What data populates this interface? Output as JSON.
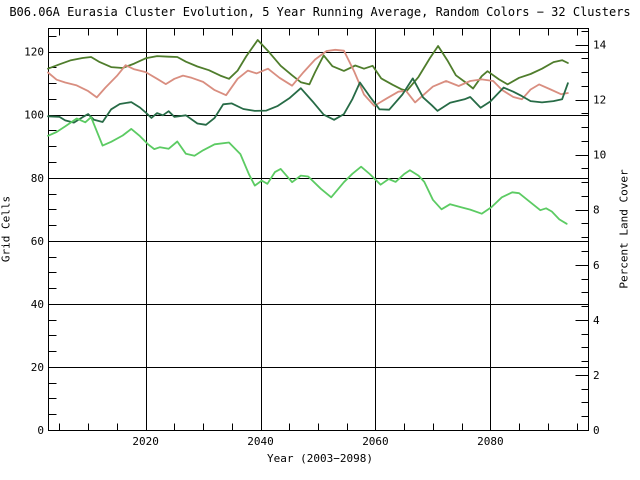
{
  "page": {
    "background": "#ffffff",
    "text_color": "#000000"
  },
  "chart_data": {
    "type": "line",
    "title": "B06.06A Eurasia Cluster Evolution, 5 Year Running Average, Random Colors − 32 Clusters",
    "xlabel": "Year (2003−2098)",
    "ylabel_left": "Grid Cells",
    "ylabel_right": "Percent Land Cover",
    "x_range": [
      2003,
      2097
    ],
    "x_major_ticks": [
      2020,
      2040,
      2060,
      2080
    ],
    "x_minor_step": 5,
    "y_left_range": [
      0,
      127.5
    ],
    "y_left_major_ticks": [
      0,
      20,
      40,
      60,
      80,
      100,
      120
    ],
    "y_left_minor_step": 5,
    "y_right_range": [
      0,
      14.6
    ],
    "y_right_major_ticks": [
      0,
      2,
      4,
      6,
      8,
      10,
      12,
      14
    ],
    "y_right_minor_step": 0.5,
    "grid": true,
    "legend": "none",
    "axis_color": "#000000",
    "values_axis": "left (Grid Cells units)",
    "series": [
      {
        "name": "cluster-line-olive-green",
        "color": "#4f7d2c",
        "points": [
          [
            2003,
            114.6
          ],
          [
            2005,
            116.0
          ],
          [
            2007,
            117.3
          ],
          [
            2009,
            118.0
          ],
          [
            2010.5,
            118.3
          ],
          [
            2012,
            116.7
          ],
          [
            2014,
            115.1
          ],
          [
            2016,
            114.8
          ],
          [
            2018,
            116.2
          ],
          [
            2020,
            117.9
          ],
          [
            2022,
            118.6
          ],
          [
            2024,
            118.4
          ],
          [
            2025.5,
            118.3
          ],
          [
            2027,
            116.8
          ],
          [
            2029,
            115.3
          ],
          [
            2031,
            114.1
          ],
          [
            2033,
            112.4
          ],
          [
            2034.5,
            111.4
          ],
          [
            2036,
            114.0
          ],
          [
            2037.5,
            118.5
          ],
          [
            2039.5,
            123.7
          ],
          [
            2041.5,
            119.8
          ],
          [
            2043.5,
            115.5
          ],
          [
            2045.5,
            112.5
          ],
          [
            2047,
            110.3
          ],
          [
            2048.5,
            109.6
          ],
          [
            2049.5,
            113.5
          ],
          [
            2051,
            118.8
          ],
          [
            2052.5,
            115.4
          ],
          [
            2054.5,
            113.9
          ],
          [
            2056.5,
            115.6
          ],
          [
            2058,
            114.6
          ],
          [
            2059.5,
            115.5
          ],
          [
            2061,
            111.5
          ],
          [
            2063,
            109.5
          ],
          [
            2064.5,
            108.1
          ],
          [
            2065.5,
            107.6
          ],
          [
            2067.5,
            112.0
          ],
          [
            2069.5,
            118.0
          ],
          [
            2070.9,
            121.8
          ],
          [
            2072.5,
            117.3
          ],
          [
            2074,
            112.5
          ],
          [
            2075.5,
            110.5
          ],
          [
            2077,
            108.3
          ],
          [
            2078.5,
            112.2
          ],
          [
            2079.5,
            113.8
          ],
          [
            2081.5,
            111.2
          ],
          [
            2083,
            109.6
          ],
          [
            2085,
            111.7
          ],
          [
            2087,
            112.9
          ],
          [
            2089,
            114.6
          ],
          [
            2091,
            116.7
          ],
          [
            2092.5,
            117.3
          ],
          [
            2093.5,
            116.4
          ]
        ]
      },
      {
        "name": "cluster-line-salmon",
        "color": "#d98e80",
        "points": [
          [
            2003,
            113.4
          ],
          [
            2004.5,
            111.1
          ],
          [
            2006,
            110.2
          ],
          [
            2008,
            109.3
          ],
          [
            2010,
            107.5
          ],
          [
            2011.5,
            105.5
          ],
          [
            2013,
            108.6
          ],
          [
            2015,
            112.3
          ],
          [
            2016.5,
            115.7
          ],
          [
            2018,
            114.4
          ],
          [
            2020,
            113.5
          ],
          [
            2022,
            111.4
          ],
          [
            2023.5,
            109.7
          ],
          [
            2025,
            111.4
          ],
          [
            2026.5,
            112.4
          ],
          [
            2028,
            111.7
          ],
          [
            2030,
            110.4
          ],
          [
            2032,
            107.8
          ],
          [
            2034,
            106.2
          ],
          [
            2036,
            111.4
          ],
          [
            2037.8,
            114.0
          ],
          [
            2039.3,
            113.1
          ],
          [
            2041.3,
            114.6
          ],
          [
            2043.3,
            111.7
          ],
          [
            2045.5,
            109.2
          ],
          [
            2047.5,
            113.5
          ],
          [
            2049.5,
            117.5
          ],
          [
            2051.5,
            120.2
          ],
          [
            2053,
            120.6
          ],
          [
            2054.5,
            120.3
          ],
          [
            2056.3,
            113.7
          ],
          [
            2058,
            106.4
          ],
          [
            2059.8,
            102.8
          ],
          [
            2062,
            105.2
          ],
          [
            2064,
            107.3
          ],
          [
            2065.3,
            107.6
          ],
          [
            2066.9,
            103.9
          ],
          [
            2068.5,
            106.5
          ],
          [
            2070,
            108.9
          ],
          [
            2072.3,
            110.7
          ],
          [
            2074.5,
            109.1
          ],
          [
            2076.5,
            110.7
          ],
          [
            2078.5,
            111.2
          ],
          [
            2080.5,
            110.7
          ],
          [
            2082,
            107.9
          ],
          [
            2084,
            105.6
          ],
          [
            2085.5,
            104.9
          ],
          [
            2087,
            108.0
          ],
          [
            2088.5,
            109.6
          ],
          [
            2090.5,
            108.0
          ],
          [
            2092.3,
            106.5
          ],
          [
            2093.5,
            106.9
          ]
        ]
      },
      {
        "name": "cluster-line-dark-green",
        "color": "#276b46",
        "points": [
          [
            2003,
            99.5
          ],
          [
            2005,
            99.3
          ],
          [
            2006,
            98.2
          ],
          [
            2007.5,
            97.5
          ],
          [
            2009,
            99.2
          ],
          [
            2010,
            100.2
          ],
          [
            2011,
            98.4
          ],
          [
            2012.5,
            97.7
          ],
          [
            2014,
            101.7
          ],
          [
            2015.5,
            103.4
          ],
          [
            2017.5,
            104.0
          ],
          [
            2019,
            102.3
          ],
          [
            2020,
            100.7
          ],
          [
            2021,
            99.0
          ],
          [
            2022,
            100.5
          ],
          [
            2023,
            99.8
          ],
          [
            2024,
            101.1
          ],
          [
            2025,
            99.3
          ],
          [
            2027,
            99.8
          ],
          [
            2029,
            97.2
          ],
          [
            2030.5,
            96.8
          ],
          [
            2032,
            99.0
          ],
          [
            2033.5,
            103.3
          ],
          [
            2035,
            103.6
          ],
          [
            2037,
            101.8
          ],
          [
            2039,
            101.2
          ],
          [
            2041,
            101.3
          ],
          [
            2043,
            102.8
          ],
          [
            2045,
            105.2
          ],
          [
            2047,
            108.4
          ],
          [
            2049,
            104.3
          ],
          [
            2051,
            100.0
          ],
          [
            2052.8,
            98.4
          ],
          [
            2054.5,
            100.2
          ],
          [
            2056,
            105.0
          ],
          [
            2057.3,
            110.2
          ],
          [
            2059,
            105.8
          ],
          [
            2060.7,
            101.7
          ],
          [
            2062.4,
            101.6
          ],
          [
            2064.7,
            106.4
          ],
          [
            2066.5,
            111.5
          ],
          [
            2068.3,
            105.5
          ],
          [
            2069.8,
            103.0
          ],
          [
            2070.8,
            101.2
          ],
          [
            2073,
            103.8
          ],
          [
            2075.5,
            104.9
          ],
          [
            2076.5,
            105.6
          ],
          [
            2078.3,
            102.2
          ],
          [
            2080,
            104.2
          ],
          [
            2082.3,
            108.6
          ],
          [
            2084,
            107.3
          ],
          [
            2085.5,
            105.9
          ],
          [
            2087,
            104.3
          ],
          [
            2089,
            103.9
          ],
          [
            2091,
            104.3
          ],
          [
            2092.5,
            104.9
          ],
          [
            2093.5,
            110.0
          ]
        ]
      },
      {
        "name": "cluster-line-light-green",
        "color": "#5ccb63",
        "points": [
          [
            2003,
            93.3
          ],
          [
            2004.5,
            94.5
          ],
          [
            2006,
            96.3
          ],
          [
            2008,
            98.8
          ],
          [
            2009.5,
            97.6
          ],
          [
            2010.5,
            99.2
          ],
          [
            2012.5,
            90.2
          ],
          [
            2014,
            91.4
          ],
          [
            2016,
            93.4
          ],
          [
            2017.5,
            95.5
          ],
          [
            2019,
            93.2
          ],
          [
            2020.5,
            90.5
          ],
          [
            2021.5,
            89.1
          ],
          [
            2022.5,
            89.7
          ],
          [
            2024,
            89.2
          ],
          [
            2025.5,
            91.5
          ],
          [
            2027,
            87.6
          ],
          [
            2028.5,
            87.0
          ],
          [
            2030,
            88.7
          ],
          [
            2032,
            90.6
          ],
          [
            2034.5,
            91.2
          ],
          [
            2036.5,
            87.5
          ],
          [
            2038,
            81.0
          ],
          [
            2039,
            77.5
          ],
          [
            2040.2,
            79.1
          ],
          [
            2041.2,
            78.1
          ],
          [
            2042.5,
            81.8
          ],
          [
            2043.5,
            82.8
          ],
          [
            2045.5,
            78.6
          ],
          [
            2047,
            80.7
          ],
          [
            2048.3,
            80.4
          ],
          [
            2050.5,
            76.5
          ],
          [
            2052.3,
            73.8
          ],
          [
            2054.5,
            78.6
          ],
          [
            2056,
            81.3
          ],
          [
            2057.5,
            83.5
          ],
          [
            2059,
            81.2
          ],
          [
            2060.9,
            77.8
          ],
          [
            2062.3,
            79.6
          ],
          [
            2063.5,
            78.7
          ],
          [
            2065,
            81.2
          ],
          [
            2066,
            82.4
          ],
          [
            2067.5,
            80.7
          ],
          [
            2068.5,
            78.7
          ],
          [
            2070,
            73.0
          ],
          [
            2071.5,
            70.0
          ],
          [
            2073,
            71.6
          ],
          [
            2075,
            70.6
          ],
          [
            2076.5,
            69.9
          ],
          [
            2078.5,
            68.6
          ],
          [
            2080.2,
            70.7
          ],
          [
            2082,
            73.8
          ],
          [
            2083.8,
            75.4
          ],
          [
            2085,
            75.1
          ],
          [
            2087,
            72.2
          ],
          [
            2088.7,
            69.7
          ],
          [
            2089.7,
            70.3
          ],
          [
            2090.7,
            69.3
          ],
          [
            2092,
            66.8
          ],
          [
            2093.3,
            65.4
          ]
        ]
      }
    ]
  }
}
